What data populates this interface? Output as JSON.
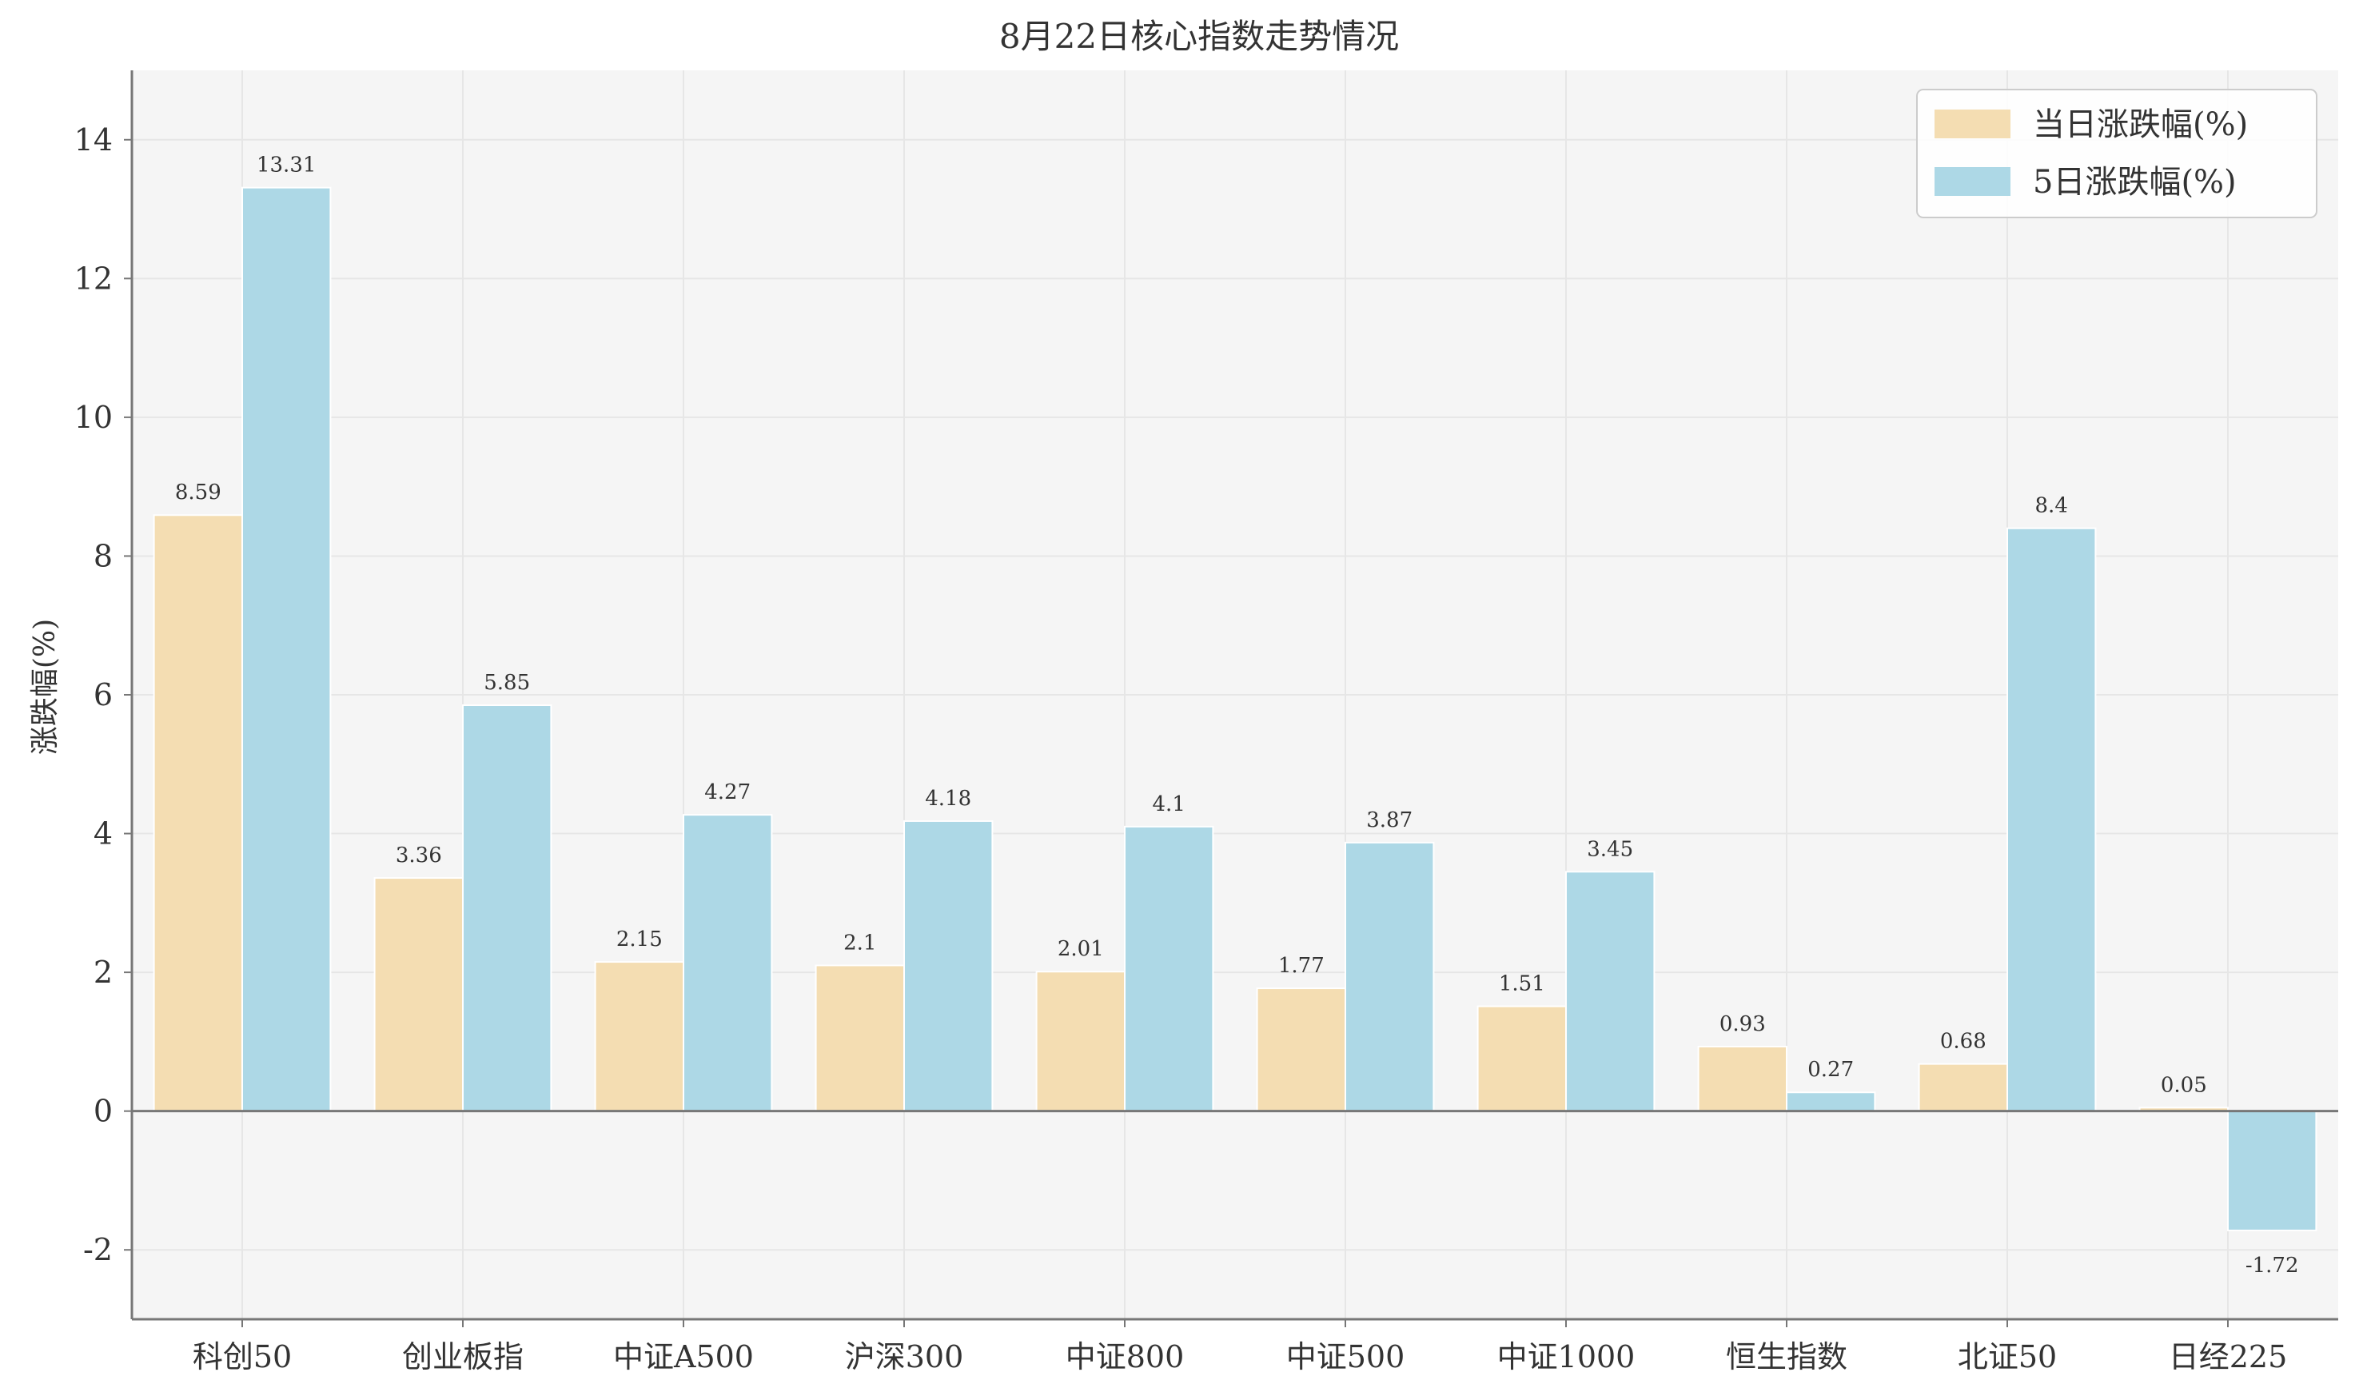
{
  "chart_data": {
    "type": "bar",
    "title": "8月22日核心指数走势情况",
    "xlabel": "",
    "ylabel": "涨跌幅(%)",
    "ylim": [
      -3,
      15
    ],
    "yticks": [
      -2,
      0,
      2,
      4,
      6,
      8,
      10,
      12,
      14
    ],
    "grid": true,
    "legend_position": "top-right",
    "categories": [
      "科创50",
      "创业板指",
      "中证A500",
      "沪深300",
      "中证800",
      "中证500",
      "中证1000",
      "恒生指数",
      "北证50",
      "日经225"
    ],
    "series": [
      {
        "name": "当日涨跌幅(%)",
        "color": "#f4ddb2",
        "values": [
          8.59,
          3.36,
          2.15,
          2.1,
          2.01,
          1.77,
          1.51,
          0.93,
          0.68,
          0.05
        ]
      },
      {
        "name": "5日涨跌幅(%)",
        "color": "#add8e6",
        "values": [
          13.31,
          5.85,
          4.27,
          4.18,
          4.1,
          3.87,
          3.45,
          0.27,
          8.4,
          -1.72
        ]
      }
    ],
    "colors": {
      "plot_background": "#f5f5f5",
      "grid": "#e6e6e6",
      "axis": "#777777"
    }
  }
}
